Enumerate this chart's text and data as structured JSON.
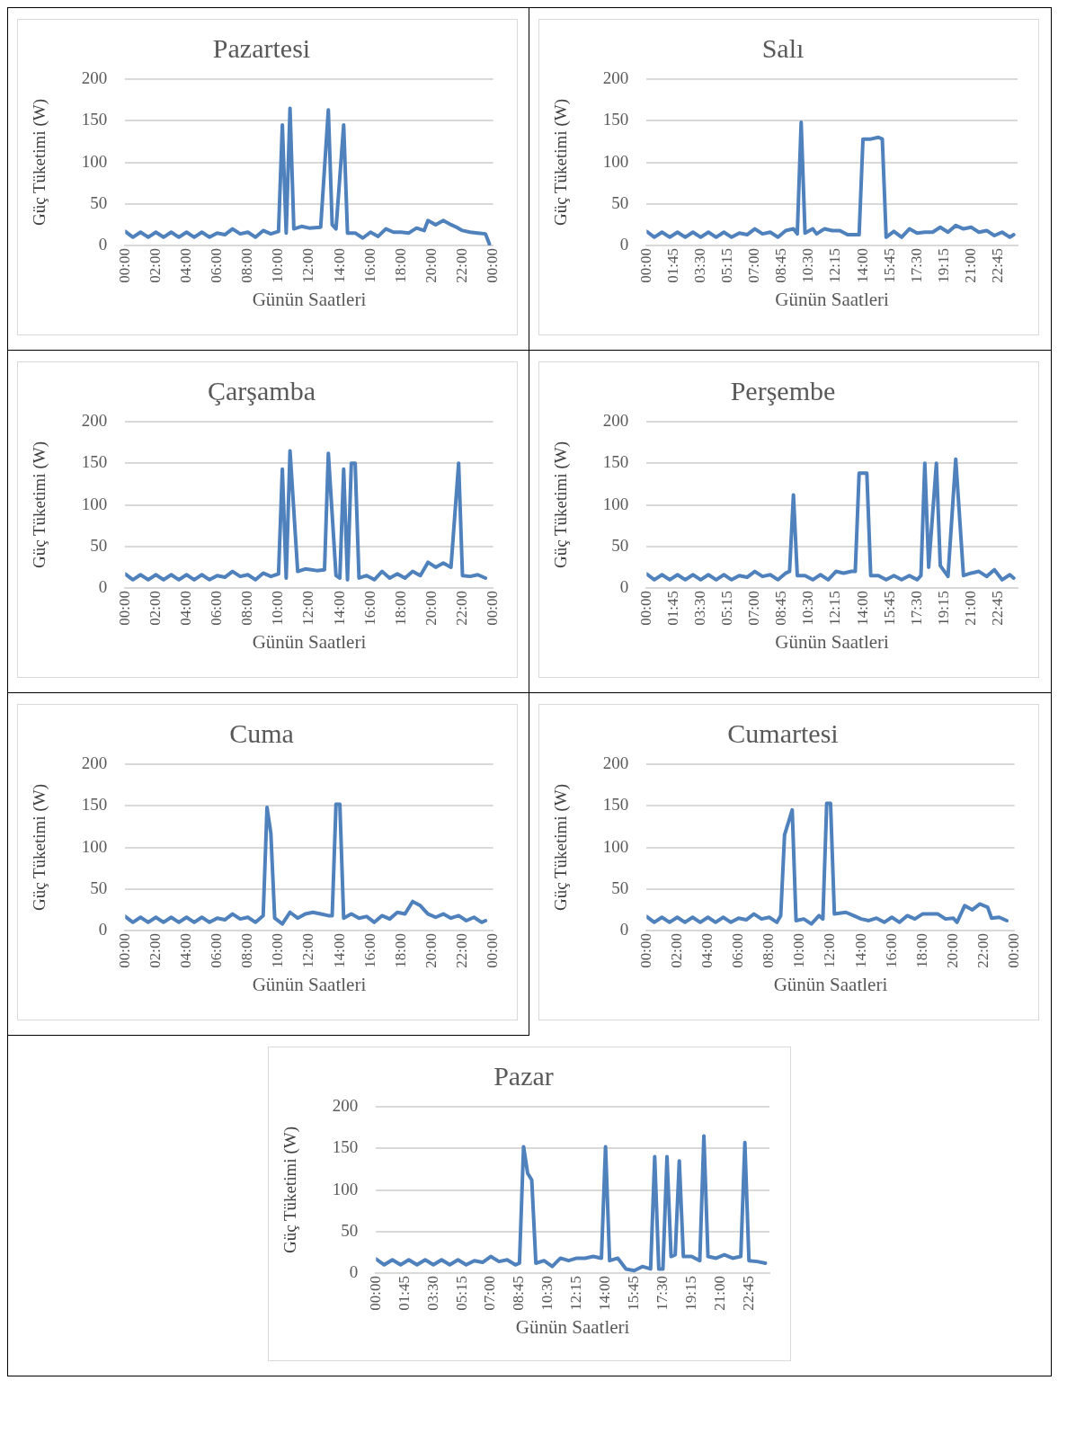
{
  "chart_data": [
    {
      "type": "line",
      "title": "Pazartesi",
      "xlabel": "Günün Saatleri",
      "ylabel": "Güç Tüketimi (W)",
      "ylim": [
        0,
        200
      ],
      "yticks": [
        0,
        50,
        100,
        150,
        200
      ],
      "xlim": [
        0,
        24
      ],
      "xticks": [
        {
          "value": 0,
          "label": "00:00"
        },
        {
          "value": 2,
          "label": "02:00"
        },
        {
          "value": 4,
          "label": "04:00"
        },
        {
          "value": 6,
          "label": "06:00"
        },
        {
          "value": 8,
          "label": "08:00"
        },
        {
          "value": 10,
          "label": "10:00"
        },
        {
          "value": 12,
          "label": "12:00"
        },
        {
          "value": 14,
          "label": "14:00"
        },
        {
          "value": 16,
          "label": "16:00"
        },
        {
          "value": 18,
          "label": "18:00"
        },
        {
          "value": 20,
          "label": "20:00"
        },
        {
          "value": 22,
          "label": "22:00"
        },
        {
          "value": 24,
          "label": "00:00"
        }
      ],
      "grid": "y",
      "x": [
        0,
        0.5,
        1,
        1.5,
        2,
        2.5,
        3,
        3.5,
        4,
        4.5,
        5,
        5.5,
        6,
        6.5,
        7,
        7.5,
        8,
        8.5,
        9,
        9.5,
        10,
        10.25,
        10.5,
        10.75,
        11,
        11.5,
        12,
        12.75,
        13.25,
        13.5,
        13.75,
        14.25,
        14.5,
        15,
        15.5,
        16,
        16.5,
        17,
        17.5,
        18,
        18.5,
        19,
        19.5,
        19.75,
        20.25,
        20.75,
        21.25,
        21.5,
        22,
        22.5,
        23,
        23.5,
        23.75
      ],
      "series": [
        {
          "color": "#4f81bd",
          "values": [
            17,
            10,
            16,
            10,
            16,
            10,
            16,
            10,
            16,
            10,
            16,
            10,
            15,
            13,
            20,
            14,
            16,
            10,
            18,
            14,
            17,
            145,
            15,
            165,
            20,
            23,
            21,
            22,
            163,
            25,
            20,
            145,
            15,
            15,
            9,
            16,
            11,
            20,
            16,
            16,
            15,
            21,
            18,
            30,
            25,
            30,
            25,
            23,
            18,
            16,
            15,
            14,
            2
          ]
        }
      ]
    },
    {
      "type": "line",
      "title": "Salı",
      "xlabel": "Günün Saatleri",
      "ylabel": "Güç Tüketimi (W)",
      "ylim": [
        0,
        200
      ],
      "yticks": [
        0,
        50,
        100,
        150,
        200
      ],
      "xlim": [
        0,
        24
      ],
      "xticks": [
        {
          "value": 0,
          "label": "00:00"
        },
        {
          "value": 1.75,
          "label": "01:45"
        },
        {
          "value": 3.5,
          "label": "03:30"
        },
        {
          "value": 5.25,
          "label": "05:15"
        },
        {
          "value": 7,
          "label": "07:00"
        },
        {
          "value": 8.75,
          "label": "08:45"
        },
        {
          "value": 10.5,
          "label": "10:30"
        },
        {
          "value": 12.25,
          "label": "12:15"
        },
        {
          "value": 14,
          "label": "14:00"
        },
        {
          "value": 15.75,
          "label": "15:45"
        },
        {
          "value": 17.5,
          "label": "17:30"
        },
        {
          "value": 19.25,
          "label": "19:15"
        },
        {
          "value": 21,
          "label": "21:00"
        },
        {
          "value": 22.75,
          "label": "22:45"
        }
      ],
      "grid": "y",
      "x": [
        0,
        0.5,
        1,
        1.5,
        2,
        2.5,
        3,
        3.5,
        4,
        4.5,
        5,
        5.5,
        6,
        6.5,
        7,
        7.5,
        8,
        8.5,
        9,
        9.5,
        9.75,
        10,
        10.25,
        10.75,
        11,
        11.5,
        12,
        12.5,
        13,
        13.75,
        14,
        14.5,
        15,
        15.25,
        15.5,
        16,
        16.5,
        17,
        17.5,
        18,
        18.5,
        19,
        19.5,
        20,
        20.5,
        21,
        21.5,
        22,
        22.5,
        23,
        23.5,
        23.75
      ],
      "series": [
        {
          "color": "#4f81bd",
          "values": [
            17,
            10,
            16,
            10,
            16,
            10,
            16,
            10,
            16,
            10,
            16,
            10,
            15,
            13,
            20,
            14,
            16,
            10,
            18,
            20,
            14,
            148,
            15,
            20,
            14,
            20,
            18,
            18,
            13,
            13,
            128,
            128,
            130,
            128,
            10,
            17,
            10,
            20,
            15,
            16,
            16,
            22,
            16,
            24,
            20,
            22,
            16,
            18,
            12,
            16,
            10,
            13
          ]
        }
      ]
    },
    {
      "type": "line",
      "title": "Çarşamba",
      "xlabel": "Günün Saatleri",
      "ylabel": "Güç Tüketimi (W)",
      "ylim": [
        0,
        200
      ],
      "yticks": [
        0,
        50,
        100,
        150,
        200
      ],
      "xlim": [
        0,
        24
      ],
      "xticks": [
        {
          "value": 0,
          "label": "00:00"
        },
        {
          "value": 2,
          "label": "02:00"
        },
        {
          "value": 4,
          "label": "04:00"
        },
        {
          "value": 6,
          "label": "06:00"
        },
        {
          "value": 8,
          "label": "08:00"
        },
        {
          "value": 10,
          "label": "10:00"
        },
        {
          "value": 12,
          "label": "12:00"
        },
        {
          "value": 14,
          "label": "14:00"
        },
        {
          "value": 16,
          "label": "16:00"
        },
        {
          "value": 18,
          "label": "18:00"
        },
        {
          "value": 20,
          "label": "20:00"
        },
        {
          "value": 22,
          "label": "22:00"
        },
        {
          "value": 24,
          "label": "00:00"
        }
      ],
      "grid": "y",
      "x": [
        0,
        0.5,
        1,
        1.5,
        2,
        2.5,
        3,
        3.5,
        4,
        4.5,
        5,
        5.5,
        6,
        6.5,
        7,
        7.5,
        8,
        8.5,
        9,
        9.5,
        10,
        10.25,
        10.5,
        10.75,
        11.25,
        11.75,
        12.5,
        13,
        13.25,
        13.75,
        14,
        14.25,
        14.5,
        14.75,
        15,
        15.25,
        15.75,
        16.25,
        16.75,
        17.25,
        17.75,
        18.25,
        18.75,
        19.25,
        19.75,
        20.25,
        20.75,
        21.25,
        21.75,
        22,
        22.5,
        23,
        23.5
      ],
      "series": [
        {
          "color": "#4f81bd",
          "values": [
            17,
            10,
            16,
            10,
            16,
            10,
            16,
            10,
            16,
            10,
            16,
            10,
            15,
            13,
            20,
            14,
            16,
            10,
            18,
            14,
            17,
            143,
            12,
            165,
            20,
            23,
            21,
            22,
            162,
            15,
            12,
            143,
            10,
            150,
            150,
            12,
            15,
            10,
            20,
            12,
            17,
            12,
            20,
            15,
            31,
            25,
            30,
            25,
            150,
            15,
            14,
            16,
            12
          ]
        }
      ]
    },
    {
      "type": "line",
      "title": "Perşembe",
      "xlabel": "Günün Saatleri",
      "ylabel": "Güç Tüketimi (W)",
      "ylim": [
        0,
        200
      ],
      "yticks": [
        0,
        50,
        100,
        150,
        200
      ],
      "xlim": [
        0,
        24
      ],
      "xticks": [
        {
          "value": 0,
          "label": "00:00"
        },
        {
          "value": 1.75,
          "label": "01:45"
        },
        {
          "value": 3.5,
          "label": "03:30"
        },
        {
          "value": 5.25,
          "label": "05:15"
        },
        {
          "value": 7,
          "label": "07:00"
        },
        {
          "value": 8.75,
          "label": "08:45"
        },
        {
          "value": 10.5,
          "label": "10:30"
        },
        {
          "value": 12.25,
          "label": "12:15"
        },
        {
          "value": 14,
          "label": "14:00"
        },
        {
          "value": 15.75,
          "label": "15:45"
        },
        {
          "value": 17.5,
          "label": "17:30"
        },
        {
          "value": 19.25,
          "label": "19:15"
        },
        {
          "value": 21,
          "label": "21:00"
        },
        {
          "value": 22.75,
          "label": "22:45"
        }
      ],
      "grid": "y",
      "x": [
        0,
        0.5,
        1,
        1.5,
        2,
        2.5,
        3,
        3.5,
        4,
        4.5,
        5,
        5.5,
        6,
        6.5,
        7,
        7.5,
        8,
        8.5,
        9,
        9.25,
        9.5,
        9.75,
        10.25,
        10.75,
        11.25,
        11.75,
        12.25,
        12.75,
        13.25,
        13.5,
        13.75,
        14.25,
        14.5,
        15,
        15.5,
        16,
        16.5,
        17,
        17.5,
        17.75,
        18,
        18.25,
        18.75,
        19,
        19.5,
        20,
        20.5,
        21,
        21.5,
        22,
        22.5,
        23,
        23.5,
        23.75
      ],
      "series": [
        {
          "color": "#4f81bd",
          "values": [
            17,
            10,
            16,
            10,
            16,
            10,
            16,
            10,
            16,
            10,
            16,
            10,
            15,
            13,
            20,
            14,
            16,
            10,
            18,
            20,
            112,
            15,
            15,
            10,
            16,
            10,
            20,
            18,
            20,
            20,
            138,
            138,
            15,
            15,
            10,
            15,
            10,
            15,
            10,
            15,
            150,
            25,
            150,
            27,
            14,
            155,
            15,
            18,
            20,
            14,
            22,
            10,
            16,
            12
          ]
        }
      ]
    },
    {
      "type": "line",
      "title": "Cuma",
      "xlabel": "Günün Saatleri",
      "ylabel": "Güç Tüketimi (W)",
      "ylim": [
        0,
        200
      ],
      "yticks": [
        0,
        50,
        100,
        150,
        200
      ],
      "xlim": [
        0,
        24
      ],
      "xticks": [
        {
          "value": 0,
          "label": "00:00"
        },
        {
          "value": 2,
          "label": "02:00"
        },
        {
          "value": 4,
          "label": "04:00"
        },
        {
          "value": 6,
          "label": "06:00"
        },
        {
          "value": 8,
          "label": "08:00"
        },
        {
          "value": 10,
          "label": "10:00"
        },
        {
          "value": 12,
          "label": "12:00"
        },
        {
          "value": 14,
          "label": "14:00"
        },
        {
          "value": 16,
          "label": "16:00"
        },
        {
          "value": 18,
          "label": "18:00"
        },
        {
          "value": 20,
          "label": "20:00"
        },
        {
          "value": 22,
          "label": "22:00"
        },
        {
          "value": 24,
          "label": "00:00"
        }
      ],
      "grid": "y",
      "x": [
        0,
        0.5,
        1,
        1.5,
        2,
        2.5,
        3,
        3.5,
        4,
        4.5,
        5,
        5.5,
        6,
        6.5,
        7,
        7.5,
        8,
        8.5,
        9,
        9.25,
        9.5,
        9.75,
        10.25,
        10.75,
        11.25,
        11.75,
        12.25,
        12.75,
        13.25,
        13.5,
        13.75,
        14,
        14.25,
        14.75,
        15.25,
        15.75,
        16.25,
        16.75,
        17.25,
        17.75,
        18.25,
        18.75,
        19.25,
        19.75,
        20.25,
        20.75,
        21.25,
        21.75,
        22.25,
        22.75,
        23.25,
        23.5
      ],
      "series": [
        {
          "color": "#4f81bd",
          "values": [
            17,
            10,
            16,
            10,
            16,
            10,
            16,
            10,
            16,
            10,
            16,
            10,
            15,
            13,
            20,
            14,
            16,
            10,
            18,
            148,
            117,
            15,
            8,
            22,
            15,
            20,
            22,
            20,
            18,
            18,
            152,
            152,
            15,
            20,
            15,
            17,
            10,
            18,
            14,
            22,
            20,
            35,
            30,
            20,
            16,
            20,
            15,
            18,
            12,
            16,
            10,
            12
          ]
        }
      ]
    },
    {
      "type": "line",
      "title": "Cumartesi",
      "xlabel": "Günün Saatleri",
      "ylabel": "Güç Tüketimi (W)",
      "ylim": [
        0,
        200
      ],
      "yticks": [
        0,
        50,
        100,
        150,
        200
      ],
      "xlim": [
        0,
        24
      ],
      "xticks": [
        {
          "value": 0,
          "label": "00:00"
        },
        {
          "value": 2,
          "label": "02:00"
        },
        {
          "value": 4,
          "label": "04:00"
        },
        {
          "value": 6,
          "label": "06:00"
        },
        {
          "value": 8,
          "label": "08:00"
        },
        {
          "value": 10,
          "label": "10:00"
        },
        {
          "value": 12,
          "label": "12:00"
        },
        {
          "value": 14,
          "label": "14:00"
        },
        {
          "value": 16,
          "label": "16:00"
        },
        {
          "value": 18,
          "label": "18:00"
        },
        {
          "value": 20,
          "label": "20:00"
        },
        {
          "value": 22,
          "label": "22:00"
        },
        {
          "value": 24,
          "label": "00:00"
        }
      ],
      "grid": "y",
      "x": [
        0,
        0.5,
        1,
        1.5,
        2,
        2.5,
        3,
        3.5,
        4,
        4.5,
        5,
        5.5,
        6,
        6.5,
        7,
        7.5,
        8,
        8.5,
        8.75,
        9,
        9.5,
        9.75,
        10.25,
        10.75,
        11.25,
        11.5,
        11.75,
        12,
        12.25,
        13,
        13.5,
        14,
        14.5,
        15,
        15.5,
        16,
        16.5,
        17,
        17.5,
        18,
        18.5,
        19,
        19.5,
        20,
        20.25,
        20.75,
        21.25,
        21.75,
        22.25,
        22.5,
        23,
        23.5
      ],
      "series": [
        {
          "color": "#4f81bd",
          "values": [
            17,
            10,
            16,
            10,
            16,
            10,
            16,
            10,
            16,
            10,
            16,
            10,
            15,
            13,
            20,
            14,
            16,
            10,
            18,
            115,
            145,
            12,
            14,
            8,
            18,
            14,
            153,
            153,
            20,
            22,
            18,
            14,
            12,
            15,
            10,
            16,
            10,
            18,
            14,
            20,
            20,
            20,
            14,
            15,
            10,
            30,
            25,
            32,
            28,
            15,
            16,
            12
          ]
        }
      ]
    },
    {
      "type": "line",
      "title": "Pazar",
      "xlabel": "Günün Saatleri",
      "ylabel": "Güç Tüketimi (W)",
      "ylim": [
        0,
        200
      ],
      "yticks": [
        0,
        50,
        100,
        150,
        200
      ],
      "xlim": [
        0,
        24
      ],
      "xticks": [
        {
          "value": 0,
          "label": "00:00"
        },
        {
          "value": 1.75,
          "label": "01:45"
        },
        {
          "value": 3.5,
          "label": "03:30"
        },
        {
          "value": 5.25,
          "label": "05:15"
        },
        {
          "value": 7,
          "label": "07:00"
        },
        {
          "value": 8.75,
          "label": "08:45"
        },
        {
          "value": 10.5,
          "label": "10:30"
        },
        {
          "value": 12.25,
          "label": "12:15"
        },
        {
          "value": 14,
          "label": "14:00"
        },
        {
          "value": 15.75,
          "label": "15:45"
        },
        {
          "value": 17.5,
          "label": "17:30"
        },
        {
          "value": 19.25,
          "label": "19:15"
        },
        {
          "value": 21,
          "label": "21:00"
        },
        {
          "value": 22.75,
          "label": "22:45"
        }
      ],
      "grid": "y",
      "x": [
        0,
        0.5,
        1,
        1.5,
        2,
        2.5,
        3,
        3.5,
        4,
        4.5,
        5,
        5.5,
        6,
        6.5,
        7,
        7.5,
        8,
        8.5,
        8.75,
        9,
        9.25,
        9.5,
        9.75,
        10.25,
        10.75,
        11.25,
        11.75,
        12.25,
        12.75,
        13.25,
        13.75,
        14,
        14.25,
        14.75,
        15.25,
        15.75,
        16.25,
        16.75,
        17,
        17.25,
        17.5,
        17.75,
        18,
        18.25,
        18.5,
        18.75,
        19.25,
        19.75,
        20,
        20.25,
        20.75,
        21.25,
        21.75,
        22.25,
        22.5,
        22.75,
        23.25,
        23.75
      ],
      "series": [
        {
          "color": "#4f81bd",
          "values": [
            17,
            10,
            16,
            10,
            16,
            10,
            16,
            10,
            16,
            10,
            16,
            10,
            15,
            13,
            20,
            14,
            16,
            10,
            12,
            152,
            120,
            112,
            12,
            15,
            8,
            18,
            15,
            18,
            18,
            20,
            18,
            152,
            15,
            18,
            5,
            3,
            8,
            5,
            140,
            5,
            5,
            140,
            20,
            22,
            135,
            20,
            20,
            15,
            165,
            20,
            18,
            22,
            18,
            20,
            157,
            15,
            14,
            12
          ]
        }
      ]
    }
  ]
}
